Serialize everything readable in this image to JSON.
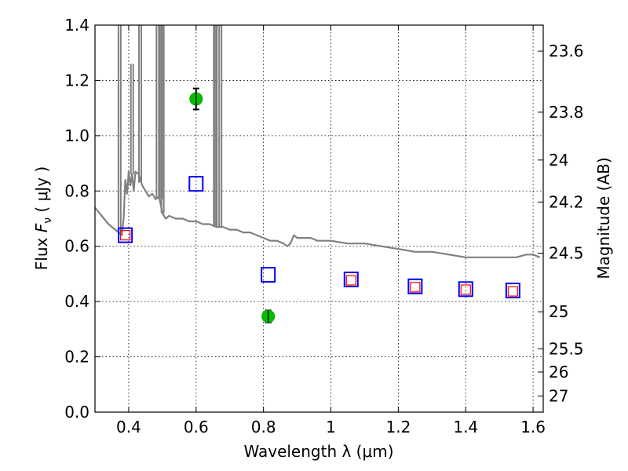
{
  "chart_data": {
    "type": "scatter",
    "title": "",
    "xlabel": "Wavelength  λ (μm)",
    "ylabel": "Flux  Fν  ( μJy )",
    "ylabel_parts": {
      "prefix": "Flux  ",
      "symbol": "F",
      "subscript": "ν",
      "suffix": "  ( μJy )"
    },
    "y2label": "Magnitude (AB)",
    "xlim": [
      0.3,
      1.63
    ],
    "ylim": [
      0.0,
      1.4
    ],
    "grid": true,
    "x_ticks": [
      {
        "value": 0.4,
        "label": "0.4"
      },
      {
        "value": 0.6,
        "label": "0.6"
      },
      {
        "value": 0.8,
        "label": "0.8"
      },
      {
        "value": 1.0,
        "label": "1"
      },
      {
        "value": 1.2,
        "label": "1.2"
      },
      {
        "value": 1.4,
        "label": "1.4"
      },
      {
        "value": 1.6,
        "label": "1.6"
      }
    ],
    "y_ticks": [
      {
        "value": 0.0,
        "label": "0.0"
      },
      {
        "value": 0.2,
        "label": "0.2"
      },
      {
        "value": 0.4,
        "label": "0.4"
      },
      {
        "value": 0.6,
        "label": "0.6"
      },
      {
        "value": 0.8,
        "label": "0.8"
      },
      {
        "value": 1.0,
        "label": "1.0"
      },
      {
        "value": 1.2,
        "label": "1.2"
      },
      {
        "value": 1.4,
        "label": "1.4"
      }
    ],
    "y2_ticks": [
      {
        "flux": 1.306,
        "label": "23.6"
      },
      {
        "flux": 1.085,
        "label": "23.8"
      },
      {
        "flux": 0.912,
        "label": "24"
      },
      {
        "flux": 0.76,
        "label": "24.2"
      },
      {
        "flux": 0.575,
        "label": "24.5"
      },
      {
        "flux": 0.363,
        "label": "25"
      },
      {
        "flux": 0.229,
        "label": "25.5"
      },
      {
        "flux": 0.145,
        "label": "26"
      },
      {
        "flux": 0.058,
        "label": "27"
      }
    ],
    "series": [
      {
        "name": "model-spectrum",
        "kind": "line",
        "color": "#808080",
        "x": [
          0.3,
          0.32,
          0.34,
          0.36,
          0.37,
          0.38,
          0.385,
          0.39,
          0.395,
          0.4,
          0.405,
          0.41,
          0.415,
          0.42,
          0.43,
          0.44,
          0.45,
          0.46,
          0.47,
          0.48,
          0.49,
          0.5,
          0.51,
          0.52,
          0.54,
          0.56,
          0.58,
          0.6,
          0.62,
          0.64,
          0.66,
          0.68,
          0.7,
          0.72,
          0.74,
          0.76,
          0.78,
          0.8,
          0.82,
          0.84,
          0.86,
          0.87,
          0.88,
          0.89,
          0.9,
          0.92,
          0.94,
          0.96,
          1.0,
          1.05,
          1.1,
          1.15,
          1.2,
          1.25,
          1.3,
          1.35,
          1.4,
          1.45,
          1.5,
          1.55,
          1.58,
          1.6,
          1.62
        ],
        "y": [
          0.74,
          0.71,
          0.68,
          0.66,
          0.65,
          0.64,
          0.7,
          0.84,
          0.79,
          0.87,
          0.82,
          0.86,
          0.8,
          0.87,
          0.86,
          0.82,
          0.8,
          0.78,
          0.79,
          0.77,
          0.78,
          0.72,
          0.7,
          0.71,
          0.7,
          0.7,
          0.69,
          0.69,
          0.68,
          0.68,
          0.67,
          0.67,
          0.66,
          0.66,
          0.65,
          0.65,
          0.64,
          0.63,
          0.62,
          0.62,
          0.61,
          0.6,
          0.61,
          0.64,
          0.63,
          0.63,
          0.63,
          0.62,
          0.62,
          0.61,
          0.61,
          0.6,
          0.59,
          0.58,
          0.58,
          0.57,
          0.56,
          0.56,
          0.56,
          0.56,
          0.57,
          0.57,
          0.56
        ]
      },
      {
        "name": "emission-lines",
        "kind": "spikes",
        "color": "#808080",
        "lines": [
          {
            "x": 0.373,
            "base": 0.65,
            "peak": 1.4
          },
          {
            "x": 0.41,
            "base": 0.86,
            "peak": 1.26
          },
          {
            "x": 0.434,
            "base": 0.83,
            "peak": 1.4
          },
          {
            "x": 0.486,
            "base": 0.77,
            "peak": 1.4
          },
          {
            "x": 0.496,
            "base": 0.77,
            "peak": 1.4
          },
          {
            "x": 0.5007,
            "base": 0.72,
            "peak": 1.4
          },
          {
            "x": 0.656,
            "base": 0.67,
            "peak": 1.4
          },
          {
            "x": 0.6583,
            "base": 0.67,
            "peak": 1.4
          },
          {
            "x": 0.672,
            "base": 0.67,
            "peak": 1.4
          }
        ]
      },
      {
        "name": "observed-photometry",
        "kind": "points-with-errors",
        "color": "#00c000",
        "points": [
          {
            "x": 0.6,
            "y": 1.133,
            "err": 0.038
          },
          {
            "x": 0.814,
            "y": 0.346,
            "err": 0.022
          }
        ]
      },
      {
        "name": "model-photometry",
        "kind": "open-squares",
        "color": "#0000ff",
        "points": [
          {
            "x": 0.39,
            "y": 0.64
          },
          {
            "x": 0.6,
            "y": 0.826
          },
          {
            "x": 0.814,
            "y": 0.497
          },
          {
            "x": 1.06,
            "y": 0.48
          },
          {
            "x": 1.25,
            "y": 0.455
          },
          {
            "x": 1.4,
            "y": 0.445
          },
          {
            "x": 1.54,
            "y": 0.44
          }
        ]
      },
      {
        "name": "synthetic-photometry",
        "kind": "small-open-squares",
        "color": "#ff0000",
        "points": [
          {
            "x": 0.39,
            "y": 0.64
          },
          {
            "x": 1.06,
            "y": 0.477
          },
          {
            "x": 1.25,
            "y": 0.452
          },
          {
            "x": 1.4,
            "y": 0.443
          },
          {
            "x": 1.54,
            "y": 0.437
          }
        ]
      }
    ]
  }
}
